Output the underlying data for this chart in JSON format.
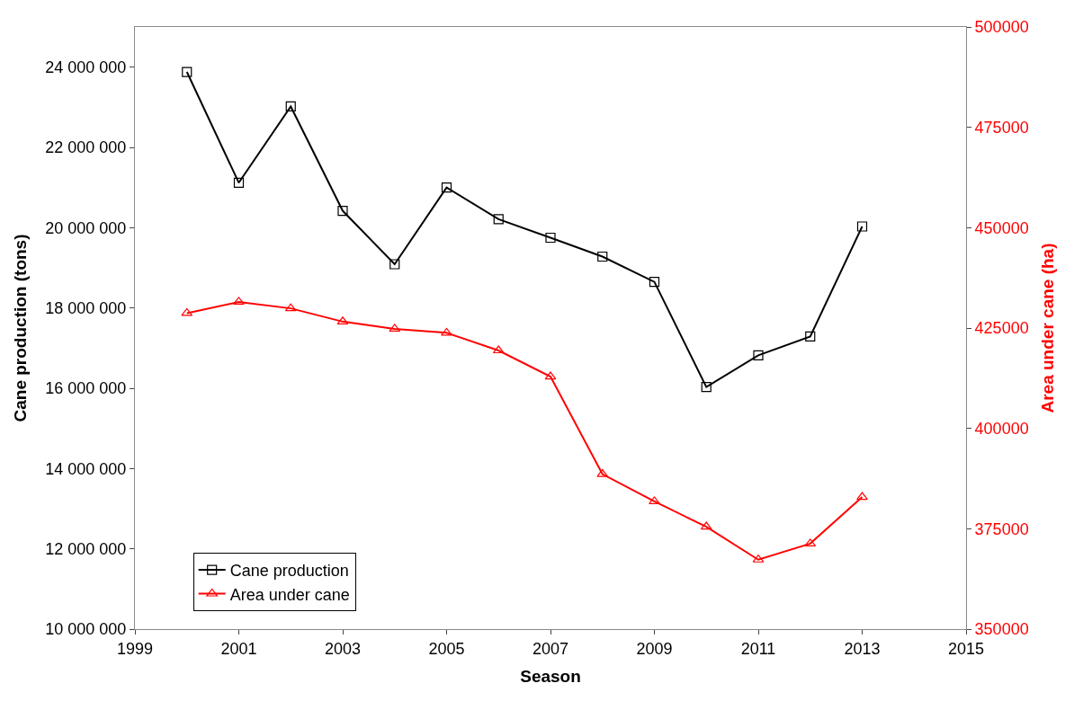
{
  "chart_data": {
    "type": "line",
    "xlabel": "Season",
    "ylabel": "Cane production (tons)",
    "y2label": "Area under cane (ha)",
    "x": [
      2000,
      2001,
      2002,
      2003,
      2004,
      2005,
      2006,
      2007,
      2008,
      2009,
      2010,
      2011,
      2012,
      2013
    ],
    "series": [
      {
        "name": "Cane production",
        "color": "#000000",
        "marker": "square",
        "values": [
          23880000,
          21120000,
          23020000,
          20420000,
          19090000,
          21000000,
          20210000,
          19750000,
          19280000,
          18650000,
          16030000,
          16820000,
          17290000,
          20030000
        ]
      },
      {
        "name": "Area under cane",
        "color": "#ff0000",
        "marker": "triangle",
        "axis": "y2",
        "values": [
          428700,
          431500,
          429900,
          426600,
          424800,
          423800,
          419400,
          412900,
          388600,
          381800,
          375500,
          367300,
          371300,
          382900
        ]
      }
    ],
    "xlim": [
      1999,
      2015
    ],
    "xticks": [
      1999,
      2001,
      2003,
      2005,
      2007,
      2009,
      2011,
      2013,
      2015
    ],
    "ylim": [
      10000000,
      25000000
    ],
    "yticks": [
      {
        "value": 10000000,
        "label": "10 000 000"
      },
      {
        "value": 12000000,
        "label": "12 000 000"
      },
      {
        "value": 14000000,
        "label": "14 000 000"
      },
      {
        "value": 16000000,
        "label": "16 000 000"
      },
      {
        "value": 18000000,
        "label": "18 000 000"
      },
      {
        "value": 20000000,
        "label": "20 000 000"
      },
      {
        "value": 22000000,
        "label": "22 000 000"
      },
      {
        "value": 24000000,
        "label": "24 000 000"
      }
    ],
    "y2lim": [
      350000,
      500000
    ],
    "y2ticks": [
      350000,
      375000,
      400000,
      425000,
      450000,
      475000,
      500000
    ],
    "legend": "bottom left",
    "line_style": "solid"
  }
}
